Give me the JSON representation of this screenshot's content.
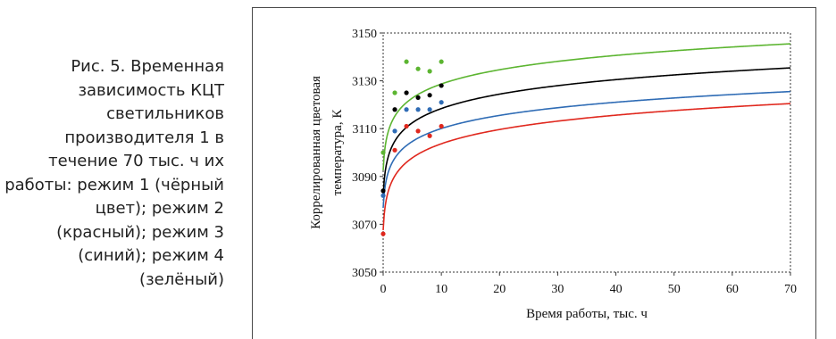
{
  "caption": "Рис. 5. Временная зависимость КЦТ светильников производителя 1 в течение 70 тыс. ч их работы: режим 1 (чёрный цвет); режим 2 (красный); режим 3 (синий); режим 4 (зелёный)",
  "chart_data": {
    "type": "scatter",
    "xlabel": "Время работы, тыс. ч",
    "ylabel": [
      "Коррелированная цветовая",
      "температура, К"
    ],
    "xlim": [
      0,
      70
    ],
    "ylim": [
      3050,
      3150
    ],
    "xticks": [
      0,
      10,
      20,
      30,
      40,
      50,
      60,
      70
    ],
    "yticks": [
      3050,
      3070,
      3090,
      3110,
      3130,
      3150
    ],
    "grid": false,
    "series": [
      {
        "color": "#000000",
        "points": [
          [
            0,
            3084
          ],
          [
            2,
            3118
          ],
          [
            4,
            3125
          ],
          [
            6,
            3123
          ],
          [
            8,
            3124
          ],
          [
            10,
            3128
          ]
        ],
        "fit": {
          "a": 3098.0,
          "b": 8.8,
          "c": 0.16
        }
      },
      {
        "color": "#e0281e",
        "points": [
          [
            0,
            3066
          ],
          [
            2,
            3101
          ],
          [
            4,
            3111
          ],
          [
            6,
            3109
          ],
          [
            8,
            3107
          ],
          [
            10,
            3111
          ]
        ],
        "fit": {
          "a": 3083.5,
          "b": 8.7,
          "c": 0.16
        }
      },
      {
        "color": "#2f6cb5",
        "points": [
          [
            0,
            3082
          ],
          [
            2,
            3109
          ],
          [
            4,
            3118
          ],
          [
            6,
            3118
          ],
          [
            8,
            3118
          ],
          [
            10,
            3121
          ]
        ],
        "fit": {
          "a": 3091.5,
          "b": 8.0,
          "c": 0.16
        }
      },
      {
        "color": "#5cb531",
        "points": [
          [
            0,
            3100
          ],
          [
            2,
            3125
          ],
          [
            4,
            3138
          ],
          [
            6,
            3135
          ],
          [
            8,
            3134
          ],
          [
            10,
            3138
          ]
        ],
        "fit": {
          "a": 3108.5,
          "b": 8.7,
          "c": 0.16
        }
      }
    ]
  }
}
